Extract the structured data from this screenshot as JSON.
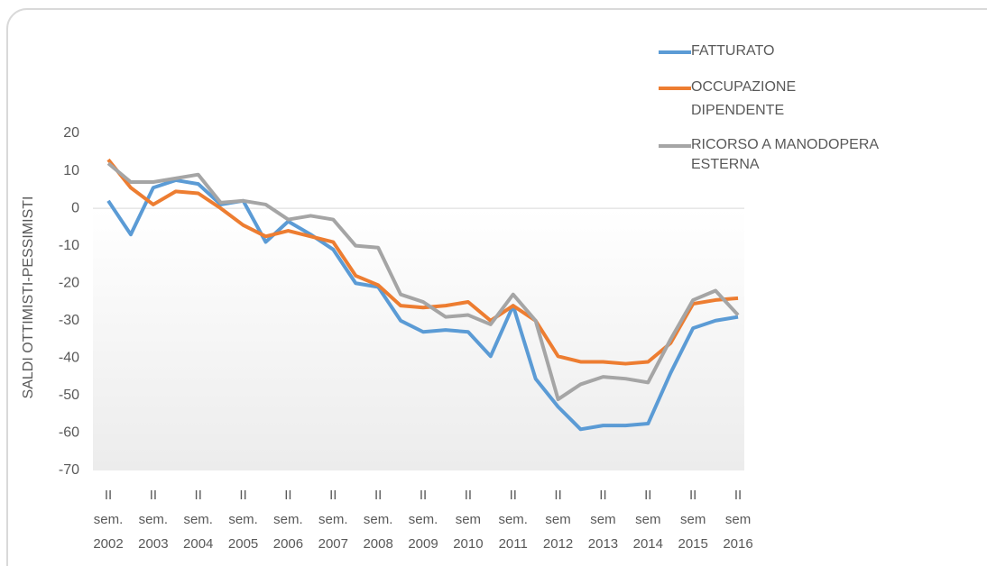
{
  "chart_data": {
    "type": "line",
    "y_label": "SALDI OTTIMISTI-PESSIMISTI",
    "categories": [
      "II sem. 2002",
      null,
      "II sem. 2003",
      null,
      "II sem. 2004",
      null,
      "II sem. 2005",
      null,
      "II sem. 2006",
      null,
      "II sem. 2007",
      null,
      "II sem. 2008",
      null,
      "II sem. 2009",
      null,
      "II sem 2010",
      null,
      "II sem. 2011",
      null,
      "II sem 2012",
      null,
      "II sem 2013",
      null,
      "II sem 2014",
      null,
      "II sem 2015",
      null,
      "II sem 2016"
    ],
    "series": [
      {
        "name": "FATTURATO",
        "color": "#5b9bd5",
        "values": [
          2,
          -7,
          5.5,
          7.5,
          6.5,
          1,
          2,
          -9,
          -3.5,
          -7,
          -11,
          -20,
          -21,
          -30,
          -33,
          -32.5,
          -33,
          -39.5,
          -26,
          -45.5,
          -53,
          -59,
          -58,
          -58,
          -57.5,
          -44,
          -32,
          -30,
          -29
        ]
      },
      {
        "name": "OCCUPAZIONE DIPENDENTE",
        "color": "#ed7d31",
        "values": [
          13,
          5.5,
          1,
          4.5,
          4,
          0,
          -4.5,
          -7.5,
          -6,
          -7.5,
          -9,
          -18,
          -20.5,
          -26,
          -26.5,
          -26,
          -25,
          -30,
          -26,
          -30,
          -39.5,
          -41,
          -41,
          -41.5,
          -41,
          -36,
          -25.5,
          -24.5,
          -24
        ]
      },
      {
        "name": "RICORSO A MANODOPERA ESTERNA",
        "color": "#a5a5a5",
        "values": [
          12,
          7,
          7,
          8,
          9,
          1.5,
          2,
          1,
          -3,
          -2,
          -3,
          -10,
          -10.5,
          -23,
          -25,
          -29,
          -28.5,
          -31,
          -23,
          -30,
          -51,
          -47,
          -45,
          -45.5,
          -46.5,
          -35,
          -24.5,
          -22,
          -28.5
        ]
      }
    ],
    "ylim": [
      -70,
      20
    ],
    "yticks": [
      -70,
      -60,
      -50,
      -40,
      -30,
      -20,
      -10,
      0,
      10,
      20
    ],
    "legend": "top-right"
  }
}
